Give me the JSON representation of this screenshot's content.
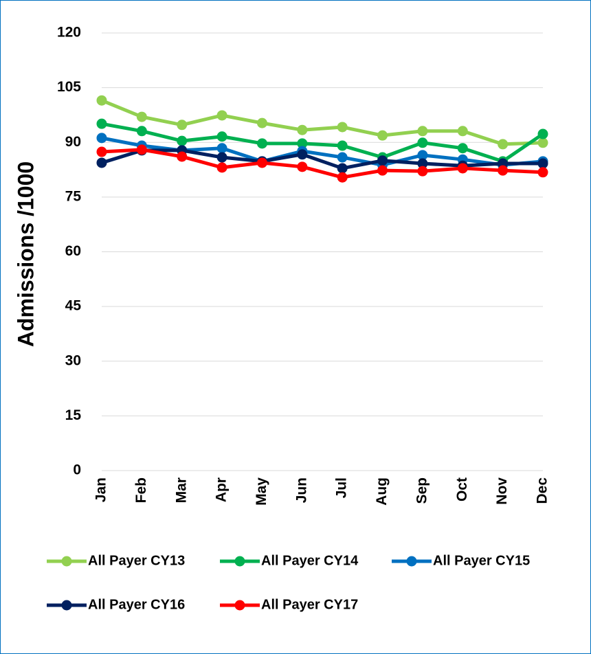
{
  "chart_data": {
    "type": "line",
    "y_label": "Admissions /1000",
    "categories": [
      "Jan",
      "Feb",
      "Mar",
      "Apr",
      "May",
      "Jun",
      "Jul",
      "Aug",
      "Sep",
      "Oct",
      "Nov",
      "Dec"
    ],
    "series": [
      {
        "name": "All Payer CY13",
        "color": "#92d050",
        "values": [
          101.5,
          97,
          94.8,
          97.4,
          95.3,
          93.4,
          94.2,
          91.9,
          93.1,
          93.1,
          89.5,
          89.9
        ]
      },
      {
        "name": "All Payer CY14",
        "color": "#00b050",
        "values": [
          95.1,
          93.1,
          90.4,
          91.6,
          89.7,
          89.7,
          89.1,
          85.9,
          89.9,
          88.4,
          84.8,
          92.3
        ]
      },
      {
        "name": "All Payer CY15",
        "color": "#0070c0",
        "values": [
          91.2,
          89.1,
          87.8,
          88.4,
          84.8,
          87.6,
          85.9,
          83.8,
          86.5,
          85.3,
          83.8,
          84.8
        ]
      },
      {
        "name": "All Payer CY16",
        "color": "#002060",
        "values": [
          84.4,
          87.8,
          87.8,
          85.9,
          84.8,
          86.7,
          82.9,
          85.0,
          84.2,
          83.6,
          84.2,
          84.2
        ]
      },
      {
        "name": "All Payer CY17",
        "color": "#ff0000",
        "values": [
          87.4,
          88.0,
          86.1,
          83.1,
          84.4,
          83.3,
          80.4,
          82.3,
          82.1,
          82.9,
          82.3,
          81.8
        ]
      }
    ],
    "ylim": [
      0,
      120
    ],
    "yticks": [
      0,
      15,
      30,
      45,
      60,
      75,
      90,
      105,
      120
    ],
    "grid": true,
    "legend": "bottom"
  }
}
